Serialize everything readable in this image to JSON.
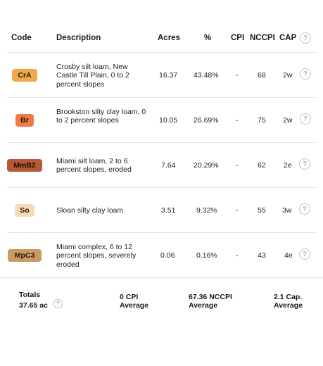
{
  "table": {
    "headers": {
      "code": "Code",
      "description": "Description",
      "acres": "Acres",
      "percent": "%",
      "cpi": "CPI",
      "nccpi": "NCCPI",
      "cap": "CAP"
    },
    "rows": [
      {
        "code": "CrA",
        "description": "Crosby silt loam, New Castle Till Plain, 0 to 2 percent slopes",
        "acres": "16.37",
        "percent": "43.48%",
        "cpi": "-",
        "nccpi": "68",
        "cap": "2w",
        "badge_color": "#f0a94a",
        "badge_text_color": "#2a1a05"
      },
      {
        "code": "Br",
        "description": "Brookston silty clay loam, 0 to 2 percent slopes",
        "acres": "10.05",
        "percent": "26.69%",
        "cpi": "-",
        "nccpi": "75",
        "cap": "2w",
        "badge_color": "#ef7a45",
        "badge_text_color": "#2a0f05"
      },
      {
        "code": "MmB2",
        "description": "Miami silt loam, 2 to 6 percent slopes, eroded",
        "acres": "7.64",
        "percent": "20.29%",
        "cpi": "-",
        "nccpi": "62",
        "cap": "2e",
        "badge_color": "#b65a36",
        "badge_text_color": "#1f0c05"
      },
      {
        "code": "So",
        "description": "Sloan silty clay loam",
        "acres": "3.51",
        "percent": "9.32%",
        "cpi": "-",
        "nccpi": "55",
        "cap": "3w",
        "badge_color": "#f7dbb9",
        "badge_text_color": "#2a1a05"
      },
      {
        "code": "MpC3",
        "description": "Miami complex, 6 to 12 percent slopes, severely eroded",
        "acres": "0.06",
        "percent": "0.16%",
        "cpi": "-",
        "nccpi": "43",
        "cap": "4e",
        "badge_color": "#c89b63",
        "badge_text_color": "#2a1a05"
      }
    ]
  },
  "totals": {
    "label": "Totals",
    "acres": "37.65 ac",
    "cpi_value": "0 CPI",
    "cpi_sub": "Average",
    "nccpi_value": "67.36 NCCPI",
    "nccpi_sub": "Average",
    "cap_value": "2.1 Cap.",
    "cap_sub": "Average"
  },
  "icons": {
    "help": "?"
  }
}
